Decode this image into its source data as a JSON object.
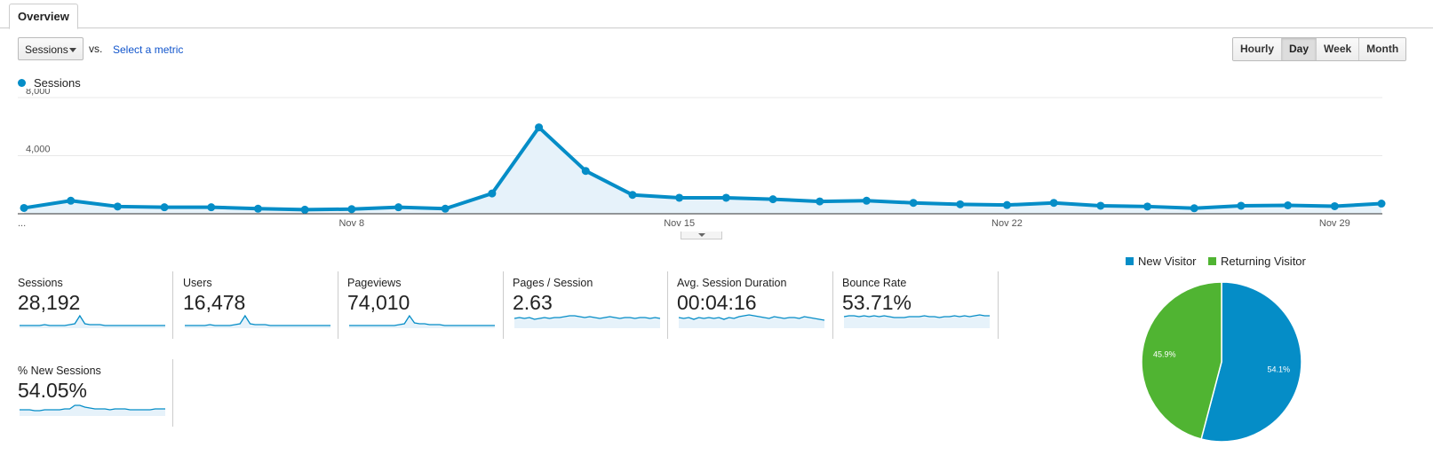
{
  "tabs": [
    {
      "label": "Overview"
    }
  ],
  "controls": {
    "metric_select": "Sessions",
    "vs_label": "vs.",
    "select_metric_link": "Select a metric",
    "granularity": [
      "Hourly",
      "Day",
      "Week",
      "Month"
    ],
    "granularity_selected": "Day"
  },
  "colors": {
    "sessions": "#058dc7",
    "new_visitor": "#058dc7",
    "returning_visitor": "#50b432"
  },
  "chart_data": {
    "type": "line",
    "series": [
      {
        "name": "Sessions",
        "values": [
          400,
          900,
          500,
          450,
          450,
          350,
          280,
          320,
          450,
          350,
          1400,
          5950,
          2950,
          1300,
          1100,
          1100,
          1000,
          850,
          900,
          750,
          650,
          600,
          750,
          550,
          500,
          380,
          550,
          580,
          520,
          700
        ]
      }
    ],
    "x_tick_labels": [
      "...",
      "Nov 8",
      "Nov 15",
      "Nov 22",
      "Nov 29"
    ],
    "y_tick_labels": [
      "8,000",
      "4,000"
    ],
    "ylim": [
      0,
      8000
    ],
    "grid": true,
    "fill": true
  },
  "metrics": [
    {
      "name": "Sessions",
      "value": "28,192",
      "spark": [
        3,
        3,
        3,
        3,
        3,
        4,
        3,
        3,
        3,
        3,
        4,
        5,
        14,
        5,
        4,
        4,
        4,
        3,
        3,
        3,
        3,
        3,
        3,
        3,
        3,
        3,
        3,
        3,
        3,
        3
      ]
    },
    {
      "name": "Users",
      "value": "16,478",
      "spark": [
        3,
        3,
        3,
        3,
        3,
        4,
        3,
        3,
        3,
        3,
        4,
        5,
        14,
        5,
        4,
        4,
        4,
        3,
        3,
        3,
        3,
        3,
        3,
        3,
        3,
        3,
        3,
        3,
        3,
        3
      ]
    },
    {
      "name": "Pageviews",
      "value": "74,010",
      "spark": [
        3,
        3,
        3,
        3,
        3,
        3,
        3,
        3,
        3,
        3,
        4,
        5,
        14,
        6,
        5,
        5,
        4,
        4,
        4,
        3,
        3,
        3,
        3,
        3,
        3,
        3,
        3,
        3,
        3,
        3
      ]
    },
    {
      "name": "Pages / Session",
      "value": "2.63",
      "spark": [
        11,
        12,
        11,
        12,
        10,
        11,
        12,
        11,
        12,
        12,
        13,
        14,
        14,
        13,
        12,
        13,
        12,
        11,
        12,
        13,
        12,
        11,
        12,
        12,
        11,
        12,
        12,
        11,
        12,
        11
      ]
    },
    {
      "name": "Avg. Session Duration",
      "value": "00:04:16",
      "spark": [
        12,
        11,
        12,
        10,
        12,
        11,
        12,
        11,
        12,
        10,
        12,
        11,
        13,
        14,
        15,
        14,
        13,
        12,
        11,
        13,
        12,
        11,
        12,
        12,
        11,
        13,
        12,
        11,
        10,
        9
      ]
    },
    {
      "name": "Bounce Rate",
      "value": "53.71%",
      "spark": [
        13,
        14,
        14,
        13,
        14,
        13,
        14,
        13,
        14,
        13,
        12,
        12,
        12,
        13,
        13,
        13,
        14,
        13,
        13,
        12,
        13,
        13,
        14,
        13,
        14,
        13,
        14,
        15,
        14,
        14
      ]
    },
    {
      "name": "% New Sessions",
      "value": "54.05%",
      "spark": [
        7,
        7,
        7,
        6,
        6,
        7,
        7,
        7,
        7,
        8,
        8,
        12,
        12,
        10,
        9,
        8,
        8,
        8,
        7,
        8,
        8,
        8,
        7,
        7,
        7,
        7,
        7,
        8,
        8,
        8
      ]
    }
  ],
  "pie": {
    "legend": [
      "New Visitor",
      "Returning Visitor"
    ],
    "slices": [
      {
        "label": "New Visitor",
        "value": 54.1,
        "text": "54.1%"
      },
      {
        "label": "Returning Visitor",
        "value": 45.9,
        "text": "45.9%"
      }
    ]
  }
}
